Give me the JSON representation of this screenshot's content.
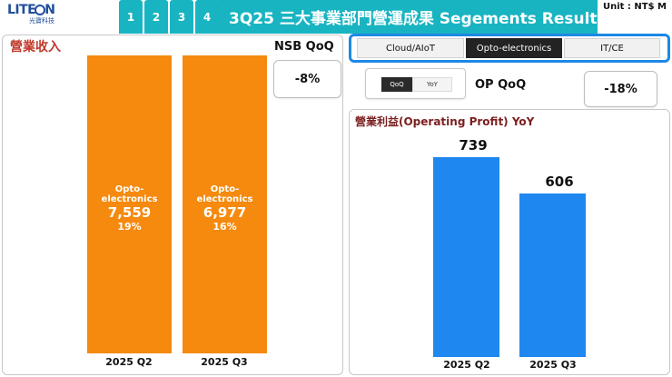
{
  "logo": {
    "brand_left": "LITE",
    "brand_right": "N",
    "sub": "光寶科技"
  },
  "page_tabs": [
    "1",
    "2",
    "3",
    "4"
  ],
  "title": "3Q25 三大事業部門營運成果 Segements Results",
  "unit": "Unit : NT$ M",
  "revenue": {
    "label": "營業收入",
    "bars": [
      {
        "segment": "Opto-electronics",
        "value": "7,559",
        "share": "19%",
        "period": "2025 Q2",
        "amount": 7559
      },
      {
        "segment": "Opto-electronics",
        "value": "6,977",
        "share": "16%",
        "period": "2025 Q3",
        "amount": 6977
      }
    ]
  },
  "nsb": {
    "label": "NSB QoQ",
    "value": "-8%"
  },
  "segment_tabs": {
    "items": [
      "Cloud/AIoT",
      "Opto-electronics",
      "IT/CE"
    ],
    "active": "Opto-electronics"
  },
  "toggle": {
    "on": "QoQ",
    "off": "YoY"
  },
  "op_qoq": {
    "label": "OP  QoQ",
    "value": "-18%"
  },
  "op_profit": {
    "title": "營業利益(Operating Profit) YoY",
    "bars": [
      {
        "value": "739",
        "period": "2025 Q2",
        "amount": 739
      },
      {
        "value": "606",
        "period": "2025 Q3",
        "amount": 606
      }
    ]
  },
  "colors": {
    "header_teal": "#19b4c2",
    "revenue_bar": "#f58a0e",
    "op_bar": "#1e88f0",
    "tab_border": "#1e88e5"
  }
}
